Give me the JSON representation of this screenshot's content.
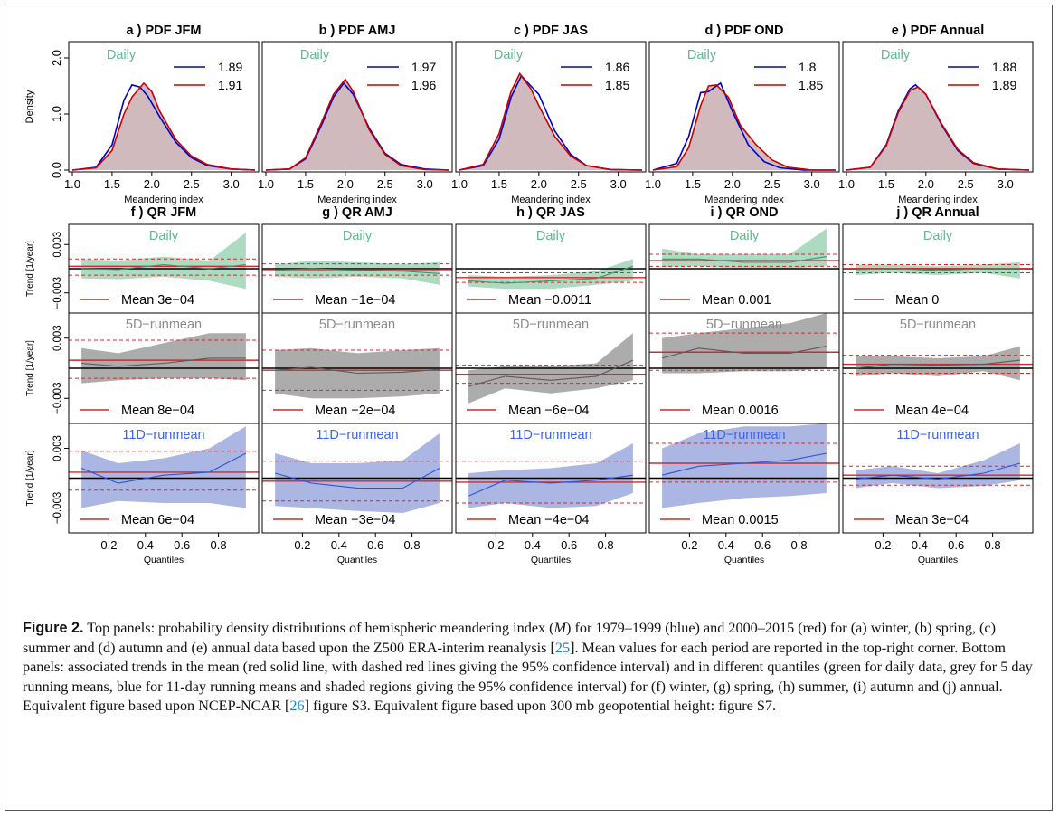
{
  "figure": {
    "density_axis_label": "Density",
    "trend_axis_label": "Trend [1/year]",
    "pdf_xlabel": "Meandering index",
    "qr_xlabel": "Quantiles",
    "daily_label": "Daily",
    "row_labels": [
      "Daily",
      "5D−runmean",
      "11D−runmean"
    ],
    "pdf_yticks": [
      "0.0",
      "1.0",
      "2.0"
    ],
    "pdf_xticks": [
      "1.0",
      "1.5",
      "2.0",
      "2.5",
      "3.0"
    ],
    "qr_yticks": [
      "−0.003",
      "0.003"
    ],
    "qr_xticks": [
      "0.2",
      "0.4",
      "0.6",
      "0.8"
    ],
    "mean_prefix": "Mean",
    "colors": {
      "blue_period": "#0000c8",
      "red_period": "#c80000",
      "pdf_fill": "#cdb6b9",
      "daily_label": "#5fb88f",
      "daily_fill": "#a9d9bf",
      "daily_line": "#4a8f6c",
      "runmean5_label": "#8c8c8c",
      "runmean5_fill": "#a8a8a8",
      "runmean5_line": "#5a5a5a",
      "runmean11_label": "#3d63e6",
      "runmean11_fill": "#a6b3e0",
      "runmean11_line": "#2b53e0",
      "mean_line": "#d12a2a"
    }
  },
  "chart_data": {
    "pdf_panels": [
      {
        "title": "a ) PDF  JFM",
        "legend": [
          "1.89",
          "1.91"
        ],
        "x_range": [
          1.0,
          3.3
        ],
        "y_range": [
          0,
          2.0
        ],
        "blue": [
          [
            1.0,
            0
          ],
          [
            1.3,
            0.05
          ],
          [
            1.5,
            0.45
          ],
          [
            1.65,
            1.25
          ],
          [
            1.75,
            1.52
          ],
          [
            1.85,
            1.48
          ],
          [
            1.95,
            1.32
          ],
          [
            2.1,
            0.95
          ],
          [
            2.3,
            0.5
          ],
          [
            2.5,
            0.22
          ],
          [
            2.7,
            0.08
          ],
          [
            3.0,
            0.02
          ],
          [
            3.3,
            0
          ]
        ],
        "red": [
          [
            1.0,
            0
          ],
          [
            1.3,
            0.04
          ],
          [
            1.5,
            0.35
          ],
          [
            1.65,
            1.0
          ],
          [
            1.75,
            1.3
          ],
          [
            1.9,
            1.55
          ],
          [
            2.0,
            1.4
          ],
          [
            2.1,
            1.05
          ],
          [
            2.3,
            0.55
          ],
          [
            2.5,
            0.25
          ],
          [
            2.7,
            0.1
          ],
          [
            3.0,
            0.02
          ],
          [
            3.3,
            0
          ]
        ]
      },
      {
        "title": "b ) PDF  AMJ",
        "legend": [
          "1.97",
          "1.96"
        ],
        "x_range": [
          1.0,
          3.3
        ],
        "y_range": [
          0,
          2.0
        ],
        "blue": [
          [
            1.0,
            0
          ],
          [
            1.3,
            0.02
          ],
          [
            1.5,
            0.2
          ],
          [
            1.7,
            0.8
          ],
          [
            1.85,
            1.3
          ],
          [
            1.98,
            1.55
          ],
          [
            2.1,
            1.35
          ],
          [
            2.3,
            0.75
          ],
          [
            2.5,
            0.3
          ],
          [
            2.7,
            0.1
          ],
          [
            3.0,
            0.02
          ],
          [
            3.3,
            0
          ]
        ],
        "red": [
          [
            1.0,
            0
          ],
          [
            1.3,
            0.02
          ],
          [
            1.5,
            0.22
          ],
          [
            1.7,
            0.85
          ],
          [
            1.85,
            1.35
          ],
          [
            2.0,
            1.62
          ],
          [
            2.1,
            1.4
          ],
          [
            2.3,
            0.72
          ],
          [
            2.5,
            0.28
          ],
          [
            2.7,
            0.08
          ],
          [
            3.0,
            0.01
          ],
          [
            3.3,
            0
          ]
        ]
      },
      {
        "title": "c ) PDF  JAS",
        "legend": [
          "1.86",
          "1.85"
        ],
        "x_range": [
          1.0,
          3.3
        ],
        "y_range": [
          0,
          2.0
        ],
        "blue": [
          [
            1.0,
            0
          ],
          [
            1.3,
            0.08
          ],
          [
            1.5,
            0.55
          ],
          [
            1.65,
            1.3
          ],
          [
            1.78,
            1.68
          ],
          [
            1.9,
            1.5
          ],
          [
            2.0,
            1.35
          ],
          [
            2.2,
            0.7
          ],
          [
            2.4,
            0.28
          ],
          [
            2.6,
            0.08
          ],
          [
            2.9,
            0.01
          ],
          [
            3.3,
            0
          ]
        ],
        "red": [
          [
            1.0,
            0
          ],
          [
            1.3,
            0.1
          ],
          [
            1.5,
            0.65
          ],
          [
            1.65,
            1.4
          ],
          [
            1.76,
            1.72
          ],
          [
            1.9,
            1.45
          ],
          [
            2.0,
            1.15
          ],
          [
            2.2,
            0.6
          ],
          [
            2.4,
            0.25
          ],
          [
            2.6,
            0.08
          ],
          [
            2.9,
            0.01
          ],
          [
            3.3,
            0
          ]
        ]
      },
      {
        "title": "d ) PDF  OND",
        "legend": [
          "1.8",
          "1.85"
        ],
        "x_range": [
          1.0,
          3.3
        ],
        "y_range": [
          0,
          2.0
        ],
        "blue": [
          [
            1.0,
            0
          ],
          [
            1.3,
            0.12
          ],
          [
            1.45,
            0.6
          ],
          [
            1.6,
            1.38
          ],
          [
            1.7,
            1.4
          ],
          [
            1.85,
            1.55
          ],
          [
            2.0,
            1.05
          ],
          [
            2.2,
            0.45
          ],
          [
            2.4,
            0.15
          ],
          [
            2.6,
            0.04
          ],
          [
            2.9,
            0
          ],
          [
            3.3,
            0
          ]
        ],
        "red": [
          [
            1.0,
            0
          ],
          [
            1.3,
            0.06
          ],
          [
            1.45,
            0.4
          ],
          [
            1.6,
            1.15
          ],
          [
            1.7,
            1.5
          ],
          [
            1.8,
            1.52
          ],
          [
            1.95,
            1.3
          ],
          [
            2.1,
            0.8
          ],
          [
            2.3,
            0.45
          ],
          [
            2.5,
            0.18
          ],
          [
            2.7,
            0.05
          ],
          [
            3.0,
            0
          ],
          [
            3.3,
            0
          ]
        ]
      },
      {
        "title": "e ) PDF  Annual",
        "legend": [
          "1.88",
          "1.89"
        ],
        "x_range": [
          1.0,
          3.3
        ],
        "y_range": [
          0,
          2.0
        ],
        "blue": [
          [
            1.0,
            0
          ],
          [
            1.3,
            0.05
          ],
          [
            1.5,
            0.45
          ],
          [
            1.65,
            1.05
          ],
          [
            1.8,
            1.45
          ],
          [
            1.87,
            1.52
          ],
          [
            2.0,
            1.35
          ],
          [
            2.2,
            0.8
          ],
          [
            2.4,
            0.35
          ],
          [
            2.6,
            0.12
          ],
          [
            2.9,
            0.02
          ],
          [
            3.3,
            0
          ]
        ],
        "red": [
          [
            1.0,
            0
          ],
          [
            1.3,
            0.05
          ],
          [
            1.5,
            0.43
          ],
          [
            1.65,
            1.02
          ],
          [
            1.8,
            1.42
          ],
          [
            1.9,
            1.48
          ],
          [
            2.0,
            1.35
          ],
          [
            2.2,
            0.82
          ],
          [
            2.4,
            0.37
          ],
          [
            2.6,
            0.13
          ],
          [
            2.9,
            0.02
          ],
          [
            3.3,
            0
          ]
        ]
      }
    ],
    "qr_titles": [
      "f ) QR  JFM",
      "g ) QR  AMJ",
      "h ) QR  JAS",
      "i ) QR  OND",
      "j ) QR  Annual"
    ],
    "qr_y_range": [
      -0.0055,
      0.0055
    ],
    "qr_quantiles": [
      0.05,
      0.25,
      0.5,
      0.75,
      0.95
    ],
    "qr_panels": [
      [
        {
          "mean_label": "3e−04",
          "mean": 0.0003,
          "ci": [
            -0.0008,
            0.0012
          ],
          "line": [
            0.0,
            -0.0001,
            0.0005,
            0.0,
            0.0005
          ],
          "lo": [
            -0.0012,
            -0.0013,
            -0.001,
            -0.0015,
            -0.0025
          ],
          "hi": [
            0.0012,
            0.001,
            0.0015,
            0.001,
            0.0045
          ]
        },
        {
          "mean_label": "8e−04",
          "mean": 0.0008,
          "ci": [
            -0.001,
            0.0028
          ],
          "line": [
            0.0005,
            0.0002,
            0.0005,
            0.001,
            0.001
          ],
          "lo": [
            -0.0015,
            -0.0012,
            -0.001,
            -0.001,
            -0.0012
          ],
          "hi": [
            0.002,
            0.0015,
            0.0025,
            0.0035,
            0.0035
          ]
        },
        {
          "mean_label": "6e−04",
          "mean": 0.0006,
          "ci": [
            -0.0012,
            0.0027
          ],
          "line": [
            0.001,
            -0.0005,
            0.0003,
            0.0006,
            0.0025
          ],
          "lo": [
            -0.003,
            -0.0023,
            -0.0025,
            -0.0025,
            -0.003
          ],
          "hi": [
            0.0028,
            0.0015,
            0.002,
            0.003,
            0.0052
          ]
        }
      ],
      [
        {
          "mean_label": "−1e−04",
          "mean": -0.0001,
          "ci": [
            -0.0008,
            0.0006
          ],
          "line": [
            -0.0002,
            0.0,
            -0.0002,
            -0.0003,
            -0.0006
          ],
          "lo": [
            -0.001,
            -0.0012,
            -0.001,
            -0.0012,
            -0.002
          ],
          "hi": [
            0.0005,
            0.001,
            0.0008,
            0.0006,
            0.0008
          ]
        },
        {
          "mean_label": "−2e−04",
          "mean": -0.0002,
          "ci": [
            -0.0022,
            0.0018
          ],
          "line": [
            -0.0002,
            0.0001,
            -0.0005,
            -0.0004,
            -0.0001
          ],
          "lo": [
            -0.0025,
            -0.003,
            -0.003,
            -0.0028,
            -0.0025
          ],
          "hi": [
            0.0018,
            0.002,
            0.0015,
            0.0018,
            0.002
          ]
        },
        {
          "mean_label": "−3e−04",
          "mean": -0.0003,
          "ci": [
            -0.0023,
            0.0017
          ],
          "line": [
            0.0005,
            -0.0005,
            -0.001,
            -0.001,
            0.001
          ],
          "lo": [
            -0.0028,
            -0.003,
            -0.0033,
            -0.0035,
            -0.0025
          ],
          "hi": [
            0.0025,
            0.0015,
            0.0015,
            0.0018,
            0.0045
          ]
        }
      ],
      [
        {
          "mean_label": "−0.0011",
          "mean": -0.0011,
          "ci": [
            -0.0017,
            -0.0005
          ],
          "line": [
            -0.0015,
            -0.0018,
            -0.0015,
            -0.0012,
            0.0003
          ],
          "lo": [
            -0.0022,
            -0.0025,
            -0.0025,
            -0.002,
            -0.0015
          ],
          "hi": [
            -0.0008,
            -0.001,
            -0.0008,
            -0.0003,
            0.0012
          ]
        },
        {
          "mean_label": "−6e−04",
          "mean": -0.0006,
          "ci": [
            -0.0015,
            0.0003
          ],
          "line": [
            -0.0018,
            -0.0008,
            -0.0012,
            -0.0008,
            0.0008
          ],
          "lo": [
            -0.0035,
            -0.002,
            -0.0025,
            -0.002,
            -0.0012
          ],
          "hi": [
            -0.0002,
            0.0002,
            0.0002,
            0.0005,
            0.0035
          ]
        },
        {
          "mean_label": "−4e−04",
          "mean": -0.0004,
          "ci": [
            -0.0025,
            0.0017
          ],
          "line": [
            -0.0018,
            -0.0002,
            -0.0005,
            -0.0002,
            0.0003
          ],
          "lo": [
            -0.003,
            -0.0025,
            -0.003,
            -0.0028,
            -0.0015
          ],
          "hi": [
            0.0005,
            0.0008,
            0.001,
            0.0015,
            0.0035
          ]
        }
      ],
      [
        {
          "mean_label": "0.001",
          "mean": 0.001,
          "ci": [
            0.0003,
            0.0018
          ],
          "line": [
            0.0012,
            0.0012,
            0.0008,
            0.0008,
            0.0015
          ],
          "lo": [
            0.0002,
            0.0003,
            0.0,
            0.0,
            0.0003
          ],
          "hi": [
            0.0025,
            0.0018,
            0.0018,
            0.0018,
            0.005
          ]
        },
        {
          "mean_label": "0.0016",
          "mean": 0.0016,
          "ci": [
            -0.0002,
            0.0035
          ],
          "line": [
            0.001,
            0.002,
            0.0015,
            0.0015,
            0.0022
          ],
          "lo": [
            -0.0005,
            -0.0005,
            -0.0003,
            -0.0003,
            0.0
          ],
          "hi": [
            0.003,
            0.0035,
            0.004,
            0.0045,
            0.0055
          ]
        },
        {
          "mean_label": "0.0015",
          "mean": 0.0015,
          "ci": [
            -0.0004,
            0.0035
          ],
          "line": [
            0.0003,
            0.0012,
            0.0015,
            0.0018,
            0.0025
          ],
          "lo": [
            -0.003,
            -0.0025,
            -0.002,
            -0.0018,
            -0.0015
          ],
          "hi": [
            0.003,
            0.0045,
            0.0052,
            0.0052,
            0.0055
          ]
        }
      ],
      [
        {
          "mean_label": "0",
          "mean": 0.0,
          "ci": [
            -0.0005,
            0.0005
          ],
          "line": [
            -0.0001,
            0.0,
            -0.0002,
            0.0,
            0.0
          ],
          "lo": [
            -0.0008,
            -0.0005,
            -0.0008,
            -0.0005,
            -0.0012
          ],
          "hi": [
            0.0005,
            0.0005,
            0.0003,
            0.0005,
            0.0008
          ]
        },
        {
          "mean_label": "4e−04",
          "mean": 0.0004,
          "ci": [
            -0.0005,
            0.0013
          ],
          "line": [
            0.0,
            0.0004,
            0.0003,
            0.0004,
            0.0008
          ],
          "lo": [
            -0.0008,
            -0.0005,
            -0.0008,
            -0.0003,
            -0.0012
          ],
          "hi": [
            0.0012,
            0.0012,
            0.001,
            0.0012,
            0.0022
          ]
        },
        {
          "mean_label": "3e−04",
          "mean": 0.0003,
          "ci": [
            -0.0007,
            0.0012
          ],
          "line": [
            -0.0001,
            0.0003,
            -0.0001,
            0.0005,
            0.0015
          ],
          "lo": [
            -0.001,
            -0.0005,
            -0.001,
            -0.0008,
            -0.0002
          ],
          "hi": [
            0.0008,
            0.0012,
            0.0005,
            0.0018,
            0.0035
          ]
        }
      ]
    ]
  },
  "caption": {
    "label": "Figure 2.",
    "t1": " Top panels: probability density distributions of hemispheric meandering index (",
    "m": "M",
    "t2": ") for 1979–1999 (blue) and 2000–2015 (red) for (a) winter, (b) spring, (c) summer and (d) autumn and (e) annual data based upon the Z500 ERA-interim reanalysis [",
    "ref1": "25",
    "t3": "]. Mean values for each period are reported in the top-right corner. Bottom panels: associated trends in the mean (red solid line, with dashed red lines giving the 95% confidence interval) and in different quantiles (green for daily data, grey for 5 day running means, blue for 11-day running means and shaded regions giving the 95% confidence interval) for (f) winter, (g) spring, (h) summer, (i) autumn and (j) annual. Equivalent figure based upon NCEP-NCAR [",
    "ref2": "26",
    "t4": "] figure S3. Equivalent figure based upon 300 mb geopotential height: figure S7."
  }
}
